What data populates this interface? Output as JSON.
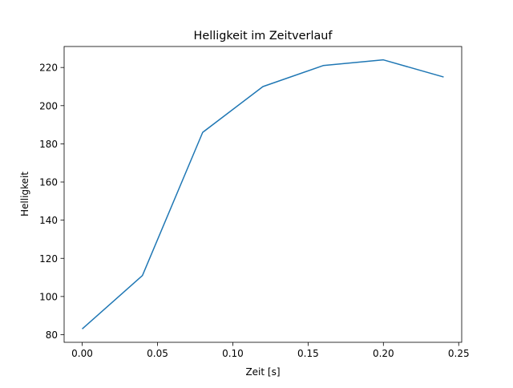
{
  "chart_data": {
    "type": "line",
    "title": "Helligkeit im Zeitverlauf",
    "xlabel": "Zeit [s]",
    "ylabel": "Helligkeit",
    "xlim": [
      -0.012,
      0.252
    ],
    "ylim": [
      76,
      231
    ],
    "xticks": [
      "0.00",
      "0.05",
      "0.10",
      "0.15",
      "0.20",
      "0.25"
    ],
    "yticks": [
      "80",
      "100",
      "120",
      "140",
      "160",
      "180",
      "200",
      "220"
    ],
    "grid": false,
    "series": [
      {
        "name": "Helligkeit",
        "color": "#1f77b4",
        "x": [
          0.0,
          0.04,
          0.08,
          0.12,
          0.16,
          0.2,
          0.24
        ],
        "y": [
          83,
          111,
          186,
          210,
          221,
          224,
          215
        ]
      }
    ]
  }
}
